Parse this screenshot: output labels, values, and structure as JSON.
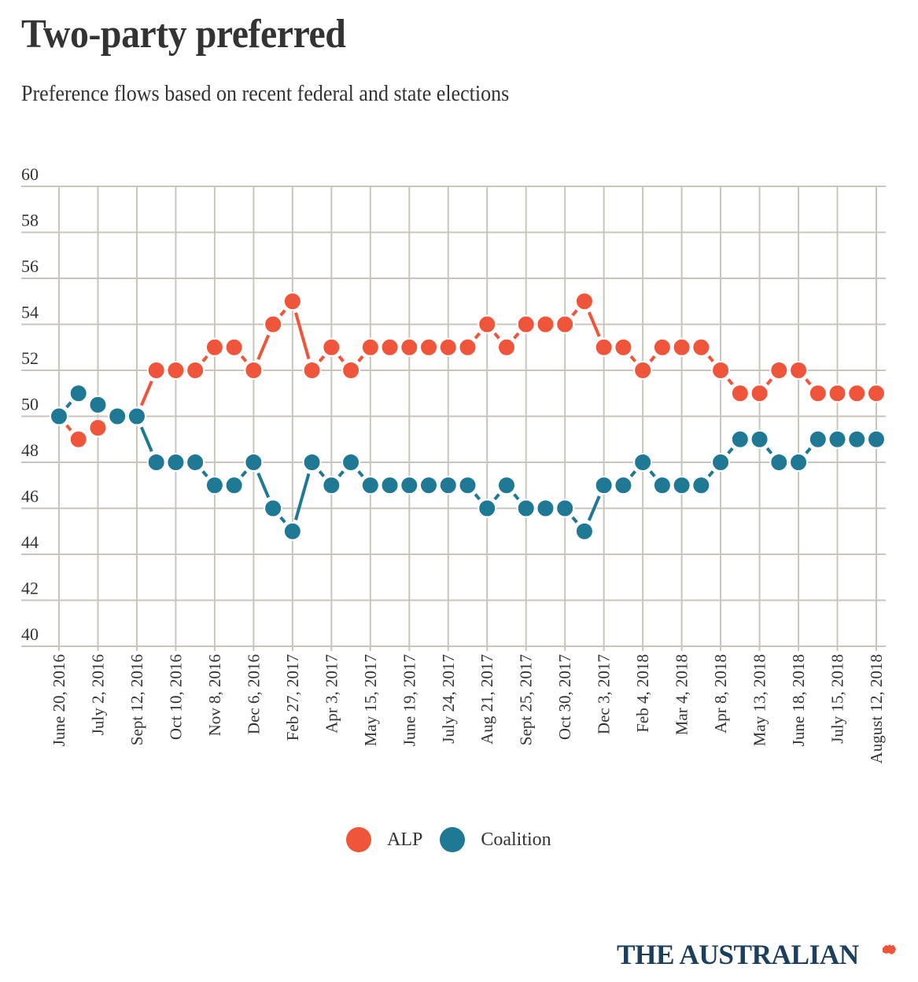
{
  "header": {
    "title": "Two-party preferred",
    "subtitle": "Preference flows based on recent federal and state elections"
  },
  "colors": {
    "alp": "#ee553b",
    "coalition": "#1f7894",
    "grid": "#c9c5bb",
    "text": "#333333",
    "logo": "#1c3f5e"
  },
  "chart_data": {
    "type": "line",
    "title": "Two-party preferred",
    "subtitle": "Preference flows based on recent federal and state elections",
    "xlabel": "",
    "ylabel": "",
    "ylim": [
      40,
      60
    ],
    "yticks": [
      60,
      58,
      56,
      54,
      52,
      50,
      48,
      46,
      44,
      42,
      40
    ],
    "grid": true,
    "legend_position": "bottom-center",
    "x_tick_labels": [
      "June 20, 2016",
      "July 2, 2016",
      "Sept 12, 2016",
      "Oct 10, 2016",
      "Nov 8, 2016",
      "Dec 6, 2016",
      "Feb 27, 2017",
      "Apr 3, 2017",
      "May 15, 2017",
      "June 19, 2017",
      "July 24, 2017",
      "Aug 21, 2017",
      "Sept 25, 2017",
      "Oct 30, 2017",
      "Dec 3, 2017",
      "Feb 4, 2018",
      "Mar 4, 2018",
      "Apr 8, 2018",
      "May 13, 2018",
      "June 18, 2018",
      "July 15, 2018",
      "August 12, 2018"
    ],
    "points_per_tick_interval": 2,
    "series": [
      {
        "name": "ALP",
        "color": "#ee553b",
        "values": [
          50,
          49,
          49.5,
          50,
          50,
          52,
          52,
          52,
          53,
          53,
          52,
          54,
          55,
          52,
          53,
          52,
          53,
          53,
          53,
          53,
          53,
          53,
          54,
          53,
          54,
          54,
          54,
          55,
          53,
          53,
          52,
          53,
          53,
          53,
          52,
          51,
          51,
          52,
          52,
          51,
          51,
          51,
          51
        ]
      },
      {
        "name": "Coalition",
        "color": "#1f7894",
        "values": [
          50,
          51,
          50.5,
          50,
          50,
          48,
          48,
          48,
          47,
          47,
          48,
          46,
          45,
          48,
          47,
          48,
          47,
          47,
          47,
          47,
          47,
          47,
          46,
          47,
          46,
          46,
          46,
          45,
          47,
          47,
          48,
          47,
          47,
          47,
          48,
          49,
          49,
          48,
          48,
          49,
          49,
          49,
          49
        ]
      }
    ]
  },
  "legend": {
    "items": [
      {
        "label": "ALP",
        "color": "#ee553b"
      },
      {
        "label": "Coalition",
        "color": "#1f7894"
      }
    ]
  },
  "footer": {
    "logo_text": "THE AUSTRALIAN"
  }
}
